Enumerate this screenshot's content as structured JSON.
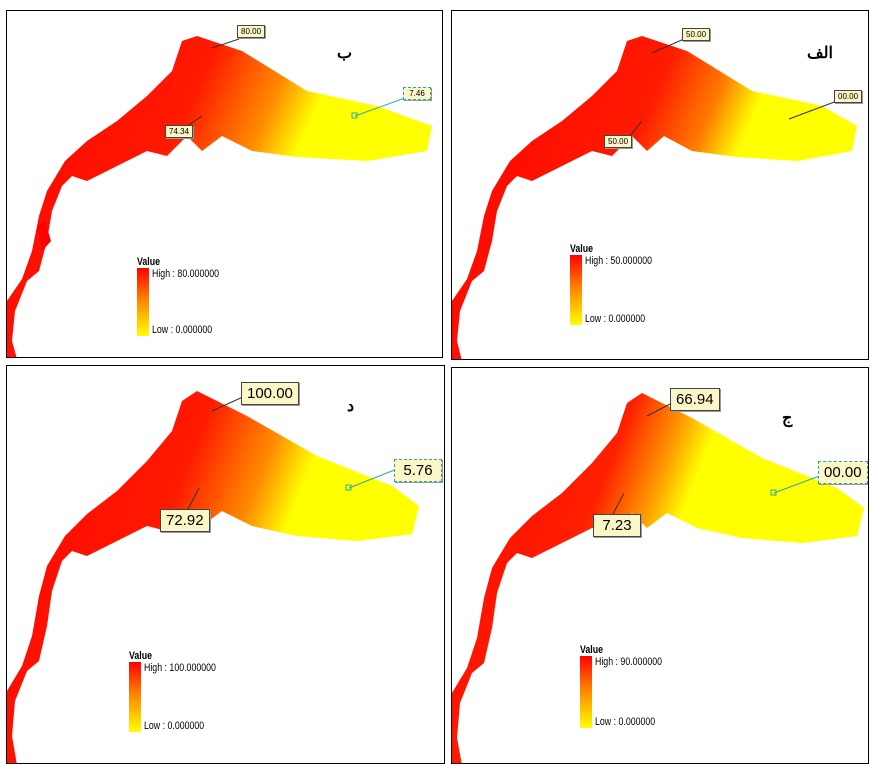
{
  "panels": {
    "b": {
      "label": "ب",
      "callouts": [
        "80.00",
        "74.34",
        "7.46"
      ],
      "legend": {
        "title": "Value",
        "high": "High : 80.000000",
        "low": "Low : 0.000000"
      }
    },
    "alef": {
      "label": "الف",
      "callouts": [
        "50.00",
        "50.00",
        "00.00"
      ],
      "legend": {
        "title": "Value",
        "high": "High : 50.000000",
        "low": "Low : 0.000000"
      }
    },
    "d": {
      "label": "د",
      "callouts": [
        "100.00",
        "72.92",
        "5.76"
      ],
      "legend": {
        "title": "Value",
        "high": "High : 100.000000",
        "low": "Low : 0.000000"
      }
    },
    "j": {
      "label": "ج",
      "callouts": [
        "66.94",
        "7.23",
        "00.00"
      ],
      "legend": {
        "title": "Value",
        "high": "High : 90.000000",
        "low": "Low : 0.000000"
      }
    }
  },
  "colors": {
    "high": "#ff0000",
    "mid": "#ff8000",
    "low": "#ffff00",
    "callout_bg": "#fbf7c6"
  }
}
